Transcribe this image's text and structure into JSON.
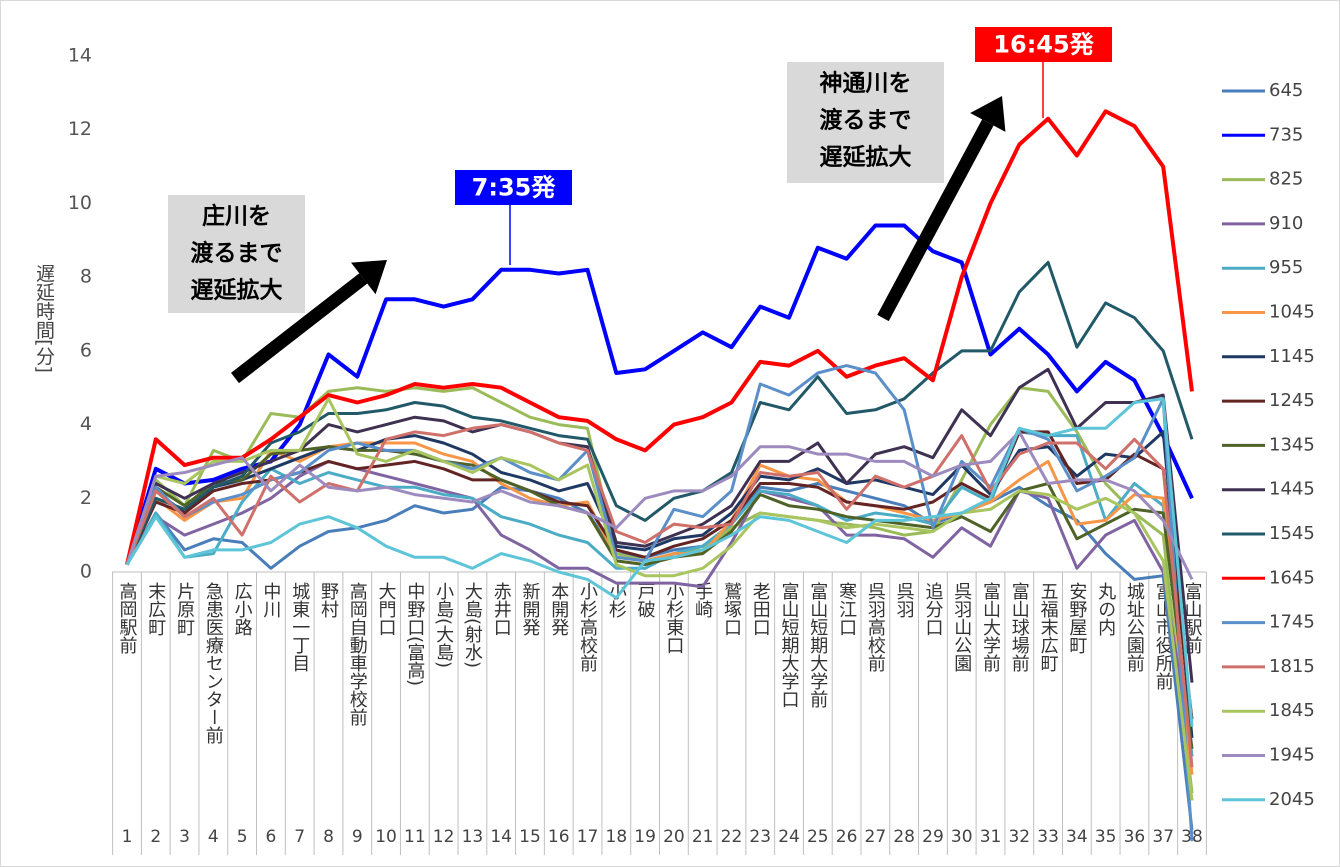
{
  "chart_data": {
    "type": "line",
    "ylabel": "遅延時間[分]",
    "ylim": [
      0,
      14
    ],
    "yticks": [
      0,
      2,
      4,
      6,
      8,
      10,
      12,
      14
    ],
    "categories": [
      "高岡駅前",
      "末広町",
      "片原町",
      "急患医療センター前",
      "広小路",
      "中川",
      "城東一丁目",
      "野村",
      "高岡自動車学校前",
      "大門口",
      "中野口(富高)",
      "小島(大島)",
      "大島(射水)",
      "赤井口",
      "新開発",
      "本開発",
      "小杉高校前",
      "小杉",
      "戸破",
      "小杉東口",
      "手崎",
      "鷲塚口",
      "老田口",
      "富山短期大学口",
      "富山短期大学前",
      "寒江口",
      "呉羽高校前",
      "呉羽",
      "追分口",
      "呉羽山公園",
      "富山大学前",
      "富山球場前",
      "五福末広町",
      "安野屋町",
      "丸の内",
      "城址公園前",
      "富山市役所前",
      "富山駅前"
    ],
    "stop_numbers": [
      1,
      2,
      3,
      4,
      5,
      6,
      7,
      8,
      9,
      10,
      11,
      12,
      13,
      14,
      15,
      16,
      17,
      18,
      19,
      20,
      21,
      22,
      23,
      24,
      25,
      26,
      27,
      28,
      29,
      30,
      31,
      32,
      33,
      34,
      35,
      36,
      37,
      38
    ],
    "annotations": [
      {
        "text": "7:35発",
        "color": "#0000ff"
      },
      {
        "text": "16:45発",
        "color": "#ff0000"
      },
      {
        "lines": [
          "庄川を",
          "渡るまで",
          "遅延拡大"
        ]
      },
      {
        "lines": [
          "神通川を",
          "渡るまで",
          "遅延拡大"
        ]
      }
    ],
    "series": [
      {
        "name": "645",
        "color": "#4a7ebb",
        "values": [
          0.2,
          1.6,
          0.6,
          0.9,
          0.8,
          0.1,
          0.7,
          1.1,
          1.2,
          1.4,
          1.8,
          1.6,
          1.7,
          2.3,
          2.2,
          2.0,
          1.6,
          0.5,
          0.4,
          0.6,
          0.7,
          1.3,
          2.3,
          2.2,
          2.4,
          2.2,
          2.0,
          1.8,
          1.3,
          1.6,
          1.9,
          2.3,
          1.8,
          1.4,
          0.5,
          -0.2,
          -0.1,
          -7.0
        ]
      },
      {
        "name": "735",
        "color": "#0000ff",
        "values": [
          0.2,
          2.8,
          2.4,
          2.5,
          2.8,
          3.0,
          4.0,
          5.9,
          5.3,
          7.4,
          7.4,
          7.2,
          7.4,
          8.2,
          8.2,
          8.1,
          8.2,
          5.4,
          5.5,
          6.0,
          6.5,
          6.1,
          7.2,
          6.9,
          8.8,
          8.5,
          9.4,
          9.4,
          8.7,
          8.4,
          5.9,
          6.6,
          5.9,
          4.9,
          5.7,
          5.2,
          3.7,
          2.0
        ]
      },
      {
        "name": "825",
        "color": "#9bbb59",
        "values": [
          0.2,
          2.5,
          1.8,
          3.3,
          3.0,
          4.3,
          4.2,
          4.9,
          5.0,
          4.9,
          5.0,
          4.9,
          5.0,
          4.6,
          4.2,
          4.0,
          3.9,
          0.5,
          0.3,
          0.5,
          0.6,
          1.2,
          1.6,
          1.5,
          1.4,
          1.3,
          1.2,
          1.0,
          1.1,
          2.5,
          4.0,
          5.0,
          4.9,
          3.8,
          2.4,
          1.6,
          1.0,
          -6.0
        ]
      },
      {
        "name": "910",
        "color": "#8064a2",
        "values": [
          0.2,
          1.5,
          1.0,
          1.3,
          1.6,
          2.0,
          2.6,
          3.0,
          2.8,
          2.6,
          2.4,
          2.2,
          2.0,
          1.0,
          0.6,
          0.1,
          0.1,
          -0.3,
          -0.3,
          -0.3,
          -0.4,
          0.8,
          2.2,
          2.0,
          1.8,
          1.0,
          1.0,
          0.9,
          0.4,
          1.2,
          0.7,
          2.2,
          2.0,
          0.1,
          1.0,
          1.4,
          0.0,
          -5.0
        ]
      },
      {
        "name": "955",
        "color": "#4bacc6",
        "values": [
          0.2,
          1.6,
          0.4,
          0.5,
          1.9,
          2.8,
          2.4,
          2.7,
          2.5,
          2.3,
          2.3,
          2.1,
          2.0,
          1.5,
          1.3,
          1.0,
          0.8,
          0.1,
          0.1,
          0.5,
          0.7,
          1.3,
          2.2,
          2.1,
          1.8,
          1.4,
          1.6,
          1.5,
          1.3,
          2.3,
          1.9,
          3.8,
          3.7,
          3.7,
          1.4,
          2.4,
          1.8,
          -5.0
        ]
      },
      {
        "name": "1045",
        "color": "#f79646",
        "values": [
          0.2,
          2.0,
          1.4,
          1.9,
          2.0,
          3.3,
          3.0,
          3.4,
          3.5,
          3.5,
          3.5,
          3.2,
          3.0,
          2.4,
          2.0,
          1.8,
          1.9,
          0.4,
          0.3,
          0.5,
          0.5,
          1.4,
          2.9,
          2.6,
          2.5,
          1.9,
          1.8,
          1.6,
          1.4,
          1.6,
          1.9,
          2.5,
          3.0,
          1.3,
          1.4,
          2.1,
          2.0,
          -5.5
        ]
      },
      {
        "name": "1145",
        "color": "#1f3864",
        "values": [
          0.2,
          2.2,
          1.6,
          2.3,
          2.5,
          2.8,
          3.1,
          3.4,
          3.3,
          3.6,
          3.7,
          3.5,
          3.2,
          2.7,
          2.5,
          2.2,
          2.4,
          0.7,
          0.6,
          0.9,
          1.0,
          1.6,
          2.6,
          2.5,
          2.8,
          2.4,
          2.5,
          2.3,
          2.1,
          2.9,
          2.1,
          3.3,
          3.4,
          2.6,
          3.2,
          3.1,
          3.8,
          -4.5
        ]
      },
      {
        "name": "1245",
        "color": "#632523",
        "values": [
          0.2,
          1.9,
          1.6,
          2.2,
          2.4,
          2.5,
          2.7,
          3.0,
          2.8,
          2.9,
          3.0,
          2.8,
          2.5,
          2.5,
          2.2,
          1.9,
          1.8,
          0.6,
          0.4,
          0.7,
          0.9,
          1.4,
          2.4,
          2.4,
          2.3,
          1.9,
          1.8,
          1.7,
          1.9,
          2.4,
          2.0,
          3.8,
          3.8,
          2.4,
          2.5,
          3.2,
          2.8,
          -4.0
        ]
      },
      {
        "name": "1345",
        "color": "#4f6228",
        "values": [
          0.2,
          2.3,
          1.8,
          2.4,
          2.5,
          3.2,
          3.3,
          3.4,
          3.3,
          3.3,
          3.2,
          3.0,
          2.9,
          2.5,
          2.2,
          1.8,
          1.6,
          0.3,
          0.2,
          0.4,
          0.5,
          1.1,
          2.1,
          1.8,
          1.7,
          1.5,
          1.4,
          1.3,
          1.2,
          1.5,
          1.1,
          2.2,
          2.4,
          0.9,
          1.3,
          1.7,
          1.6,
          -4.8
        ]
      },
      {
        "name": "1445",
        "color": "#3f3151",
        "values": [
          0.2,
          2.4,
          2.0,
          2.4,
          2.7,
          3.0,
          3.3,
          4.0,
          3.8,
          4.0,
          4.2,
          4.1,
          3.8,
          4.0,
          3.8,
          3.5,
          3.4,
          0.8,
          0.7,
          1.0,
          1.3,
          1.8,
          3.0,
          3.0,
          3.5,
          2.4,
          3.2,
          3.4,
          3.1,
          4.4,
          3.7,
          5.0,
          5.5,
          3.9,
          4.6,
          4.6,
          4.8,
          -3.0
        ]
      },
      {
        "name": "1545",
        "color": "#215968",
        "values": [
          0.2,
          2.0,
          1.7,
          2.3,
          2.6,
          3.5,
          3.8,
          4.3,
          4.3,
          4.4,
          4.6,
          4.5,
          4.2,
          4.1,
          3.9,
          3.7,
          3.6,
          1.8,
          1.4,
          2.0,
          2.2,
          2.7,
          4.6,
          4.4,
          5.3,
          4.3,
          4.4,
          4.7,
          5.4,
          6.0,
          6.0,
          7.6,
          8.4,
          6.1,
          7.3,
          6.9,
          6.0,
          3.6
        ]
      },
      {
        "name": "1645",
        "color": "#ff0000",
        "values": [
          0.2,
          3.6,
          2.9,
          3.1,
          3.1,
          3.6,
          4.2,
          4.8,
          4.6,
          4.8,
          5.1,
          5.0,
          5.1,
          5.0,
          4.6,
          4.2,
          4.1,
          3.6,
          3.3,
          4.0,
          4.2,
          4.6,
          5.7,
          5.6,
          6.0,
          5.3,
          5.6,
          5.8,
          5.2,
          8.0,
          10.0,
          11.6,
          12.3,
          11.3,
          12.5,
          12.1,
          11.0,
          4.9
        ]
      },
      {
        "name": "1745",
        "color": "#5b8fc9",
        "values": [
          0.2,
          2.3,
          1.5,
          1.9,
          2.1,
          2.5,
          2.7,
          3.3,
          3.5,
          3.3,
          3.3,
          3.0,
          2.8,
          3.1,
          2.7,
          2.5,
          3.3,
          0.4,
          0.3,
          1.7,
          1.5,
          2.2,
          5.1,
          4.8,
          5.4,
          5.6,
          5.4,
          4.4,
          1.2,
          3.0,
          2.3,
          3.9,
          3.6,
          2.2,
          2.6,
          3.1,
          4.7,
          -7.3
        ]
      },
      {
        "name": "1815",
        "color": "#d0706a",
        "values": [
          0.2,
          2.2,
          1.5,
          2.0,
          1.0,
          2.6,
          1.9,
          2.4,
          2.2,
          3.6,
          3.8,
          3.7,
          3.9,
          4.0,
          3.8,
          3.5,
          3.3,
          1.1,
          0.8,
          1.3,
          1.2,
          1.3,
          2.7,
          2.6,
          2.7,
          1.7,
          2.6,
          2.3,
          2.6,
          3.7,
          2.2,
          3.2,
          3.5,
          3.5,
          2.8,
          3.6,
          2.8,
          -5.3
        ]
      },
      {
        "name": "1845",
        "color": "#a9c55f",
        "values": [
          0.2,
          2.6,
          2.4,
          3.0,
          3.0,
          3.3,
          3.3,
          4.7,
          3.2,
          3.0,
          3.3,
          3.0,
          2.7,
          3.1,
          2.9,
          2.5,
          2.9,
          0.2,
          -0.1,
          -0.1,
          0.1,
          0.7,
          1.6,
          1.5,
          1.4,
          1.2,
          1.3,
          1.2,
          1.1,
          1.6,
          1.7,
          2.2,
          2.1,
          1.7,
          2.0,
          1.6,
          0.3,
          -6.2
        ]
      },
      {
        "name": "1945",
        "color": "#9d8bbf",
        "values": [
          0.2,
          2.6,
          2.7,
          2.9,
          3.1,
          2.2,
          2.9,
          2.3,
          2.2,
          2.3,
          2.1,
          2.0,
          1.9,
          2.2,
          1.9,
          1.8,
          1.6,
          1.2,
          2.0,
          2.2,
          2.2,
          2.6,
          3.4,
          3.4,
          3.2,
          3.2,
          3.0,
          3.0,
          2.6,
          2.9,
          3.0,
          3.8,
          2.4,
          2.5,
          2.5,
          2.2,
          1.4,
          -0.2
        ]
      },
      {
        "name": "2045",
        "color": "#5ec5d9",
        "values": [
          0.2,
          1.5,
          0.4,
          0.6,
          0.6,
          0.8,
          1.3,
          1.5,
          1.2,
          0.7,
          0.4,
          0.4,
          0.1,
          0.5,
          0.3,
          0.0,
          -0.2,
          -0.7,
          0.3,
          0.4,
          0.6,
          1.0,
          1.5,
          1.4,
          1.1,
          0.8,
          1.4,
          1.4,
          1.5,
          1.6,
          2.0,
          3.9,
          3.7,
          3.9,
          3.9,
          4.6,
          4.7,
          -4.2
        ]
      }
    ]
  }
}
